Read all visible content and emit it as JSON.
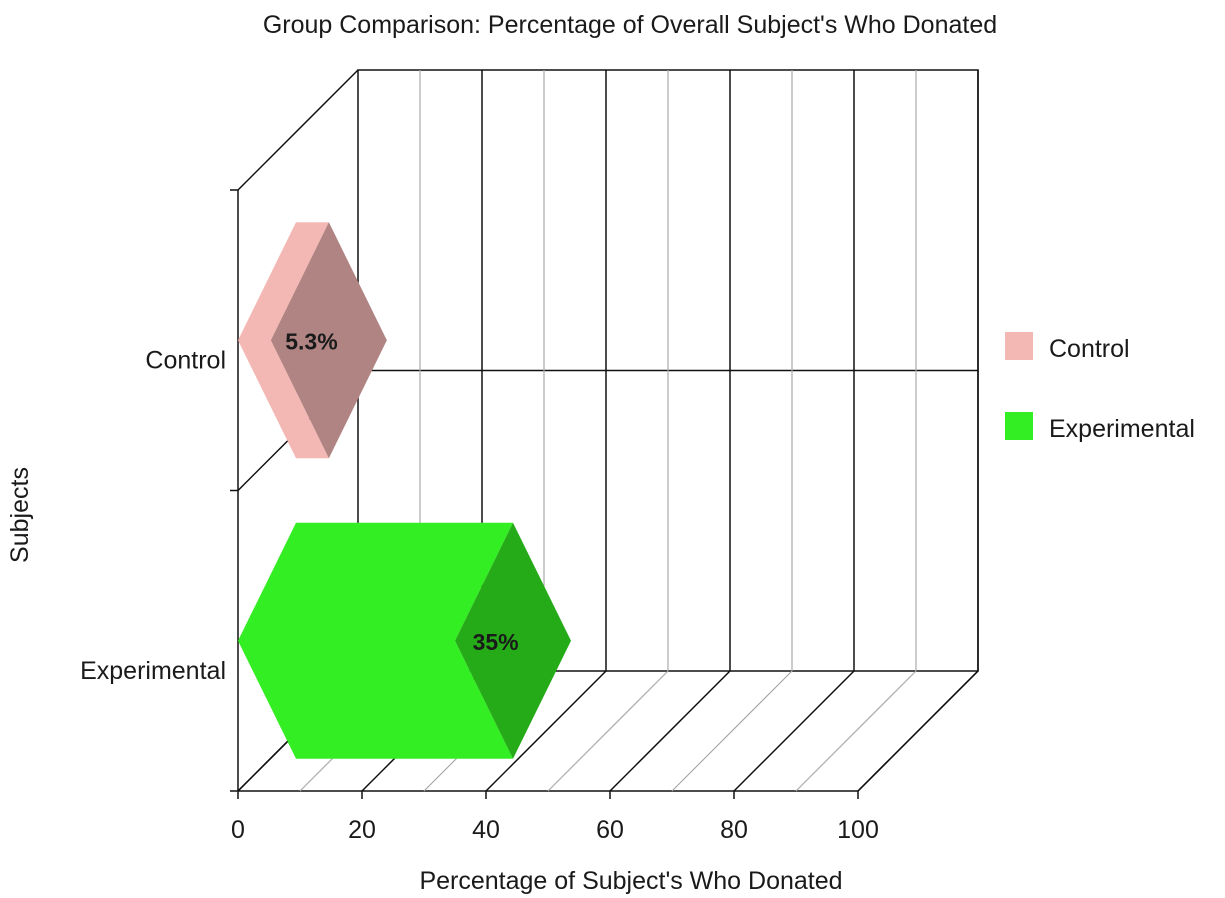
{
  "chart_data": {
    "type": "bar",
    "orientation": "horizontal",
    "style": "3d",
    "title": "Group Comparison: Percentage of Overall Subject's Who Donated",
    "xlabel": "Percentage of Subject's Who Donated",
    "ylabel": "Subjects",
    "categories": [
      "Control",
      "Experimental"
    ],
    "values": [
      5.3,
      35
    ],
    "data_labels": [
      "5.3%",
      "35%"
    ],
    "xlim": [
      0,
      100
    ],
    "xticks": [
      "0",
      "20",
      "40",
      "60",
      "80",
      "100"
    ],
    "grid": true,
    "legend": {
      "position": "right",
      "entries": [
        "Control",
        "Experimental"
      ]
    },
    "colors": {
      "Control": "#f4b8b4",
      "Experimental": "#33ee22"
    }
  }
}
